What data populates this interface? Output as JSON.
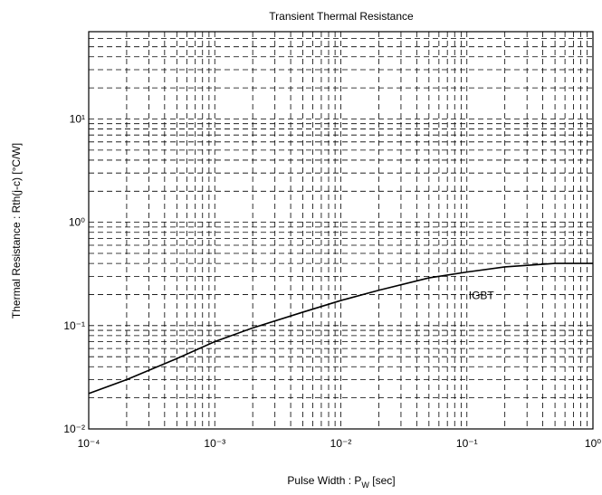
{
  "chart_data": {
    "type": "line",
    "title": "Transient Thermal Resistance",
    "xlabel": {
      "text": "Pulse Width  :  P",
      "subscript": "W",
      "suffix": "  [sec]"
    },
    "ylabel": "Thermal Resistance  :  Rth(j-c)  [°C/W]",
    "xscale": "log",
    "yscale": "log",
    "grid": true,
    "minor_grid": true,
    "xlim": [
      0.0001,
      1
    ],
    "ylim": [
      0.01,
      70
    ],
    "xticks": [
      {
        "value": 0.0001,
        "label": "10⁻⁴"
      },
      {
        "value": 0.001,
        "label": "10⁻³"
      },
      {
        "value": 0.01,
        "label": "10⁻²"
      },
      {
        "value": 0.1,
        "label": "10⁻¹"
      },
      {
        "value": 1,
        "label": "10⁰"
      }
    ],
    "yticks": [
      {
        "value": 0.01,
        "label": "10⁻²"
      },
      {
        "value": 0.1,
        "label": "10⁻¹"
      },
      {
        "value": 1,
        "label": "10⁰"
      },
      {
        "value": 10,
        "label": "10¹"
      }
    ],
    "x": [
      0.0001,
      0.0002,
      0.0005,
      0.001,
      0.002,
      0.005,
      0.01,
      0.02,
      0.05,
      0.1,
      0.2,
      0.5,
      1
    ],
    "series": [
      {
        "name": "IGBT",
        "color": "#000000",
        "values": [
          0.022,
          0.03,
          0.048,
          0.07,
          0.095,
          0.135,
          0.175,
          0.22,
          0.29,
          0.33,
          0.37,
          0.4,
          0.4
        ]
      }
    ]
  }
}
